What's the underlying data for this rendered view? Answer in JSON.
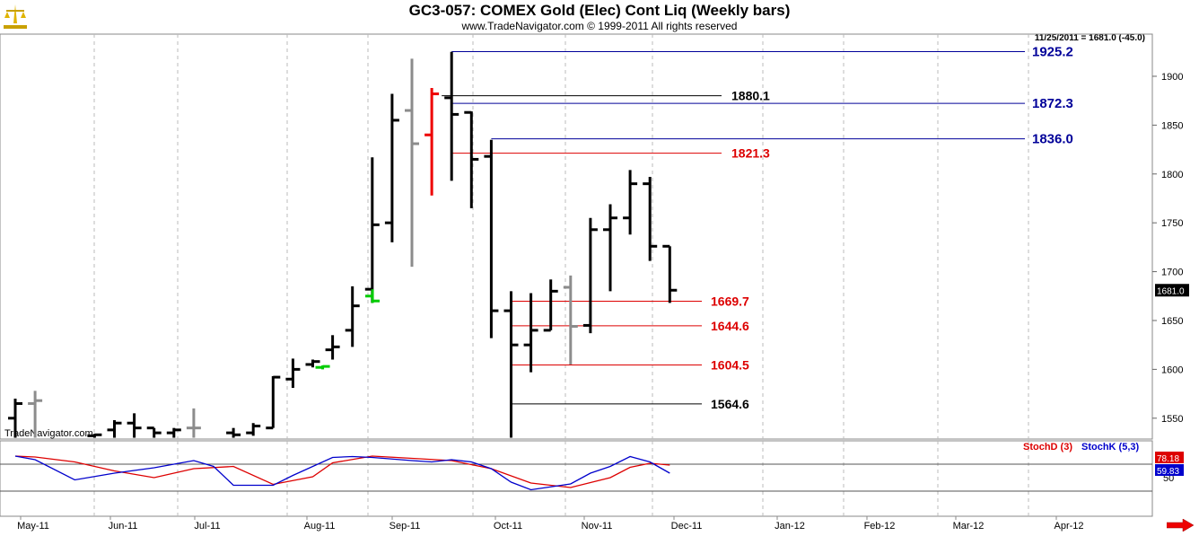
{
  "header": {
    "title": "GC3-057:  COMEX Gold (Elec) Cont Liq  (Weekly bars)",
    "subtitle": "www.TradeNavigator.com © 1999-2011 All rights reserved",
    "last_readout": "11/25/2011 = 1681.0 (-45.0)",
    "watermark": "TradeNavigator.com"
  },
  "colors": {
    "up_bar": "#000000",
    "gray_bar": "#8c8c8c",
    "red_bar": "#ee0000",
    "green_bar": "#00cc00",
    "blue_level": "#000099",
    "red_level": "#dd0000",
    "stochD": "#dd0000",
    "stochK": "#0000cc",
    "grid": "#bbbbbb"
  },
  "chart_data": [
    {
      "type": "ohlc",
      "title": "GC3-057:  COMEX Gold (Elec) Cont Liq  (Weekly bars)",
      "ylim": [
        1530,
        1945
      ],
      "yticks": [
        1550,
        1600,
        1650,
        1700,
        1750,
        1800,
        1850,
        1900
      ],
      "last_price_label": "1681.0",
      "x_ticks": [
        "May-11",
        "Jun-11",
        "Jul-11",
        "Aug-11",
        "Sep-11",
        "Oct-11",
        "Nov-11",
        "Dec-11",
        "Jan-12",
        "Feb-12",
        "Mar-12",
        "Apr-12"
      ],
      "bars": [
        {
          "week": 0,
          "o": 1550,
          "h": 1570,
          "l": 1530,
          "c": 1565,
          "color": "black"
        },
        {
          "week": 1,
          "o": 1565,
          "h": 1578,
          "l": 1530,
          "c": 1568,
          "color": "gray"
        },
        {
          "week": 4,
          "o": 1532,
          "h": 1534,
          "l": 1530,
          "c": 1533,
          "color": "black"
        },
        {
          "week": 5,
          "o": 1538,
          "h": 1548,
          "l": 1530,
          "c": 1545,
          "color": "black"
        },
        {
          "week": 6,
          "o": 1545,
          "h": 1555,
          "l": 1530,
          "c": 1540,
          "color": "black"
        },
        {
          "week": 7,
          "o": 1540,
          "h": 1540,
          "l": 1530,
          "c": 1535,
          "color": "black"
        },
        {
          "week": 8,
          "o": 1535,
          "h": 1540,
          "l": 1530,
          "c": 1538,
          "color": "black"
        },
        {
          "week": 9,
          "o": 1540,
          "h": 1560,
          "l": 1530,
          "c": 1540,
          "color": "gray"
        },
        {
          "week": 11,
          "o": 1535,
          "h": 1540,
          "l": 1530,
          "c": 1533,
          "color": "black"
        },
        {
          "week": 12,
          "o": 1535,
          "h": 1545,
          "l": 1532,
          "c": 1542,
          "color": "black"
        },
        {
          "week": 13,
          "o": 1540,
          "h": 1593,
          "l": 1540,
          "c": 1592,
          "color": "black"
        },
        {
          "week": 14,
          "o": 1590,
          "h": 1611,
          "l": 1581,
          "c": 1600,
          "color": "black"
        },
        {
          "week": 15,
          "o": 1605,
          "h": 1610,
          "l": 1602,
          "c": 1608,
          "color": "black"
        },
        {
          "week": 15.5,
          "o": 1602,
          "h": 1604,
          "l": 1600,
          "c": 1603,
          "color": "green"
        },
        {
          "week": 16,
          "o": 1620,
          "h": 1635,
          "l": 1610,
          "c": 1623,
          "color": "black"
        },
        {
          "week": 17,
          "o": 1640,
          "h": 1685,
          "l": 1623,
          "c": 1665,
          "color": "black"
        },
        {
          "week": 18,
          "o": 1682,
          "h": 1817,
          "l": 1668,
          "c": 1748,
          "color": "black"
        },
        {
          "week": 18.01,
          "o": 1675,
          "h": 1682,
          "l": 1668,
          "c": 1670,
          "color": "green"
        },
        {
          "week": 19,
          "o": 1750,
          "h": 1882,
          "l": 1730,
          "c": 1855,
          "color": "black"
        },
        {
          "week": 20,
          "o": 1865,
          "h": 1918,
          "l": 1705,
          "c": 1831,
          "color": "gray"
        },
        {
          "week": 21,
          "o": 1840,
          "h": 1888,
          "l": 1778,
          "c": 1882,
          "color": "red"
        },
        {
          "week": 22,
          "o": 1878,
          "h": 1925,
          "l": 1793,
          "c": 1861,
          "color": "black"
        },
        {
          "week": 23,
          "o": 1863,
          "h": 1864,
          "l": 1765,
          "c": 1815,
          "color": "black"
        },
        {
          "week": 24,
          "o": 1818,
          "h": 1835,
          "l": 1632,
          "c": 1660,
          "color": "black"
        },
        {
          "week": 25,
          "o": 1660,
          "h": 1680,
          "l": 1530,
          "c": 1625,
          "color": "black"
        },
        {
          "week": 26,
          "o": 1625,
          "h": 1678,
          "l": 1597,
          "c": 1640,
          "color": "black"
        },
        {
          "week": 27,
          "o": 1640,
          "h": 1692,
          "l": 1640,
          "c": 1680,
          "color": "black"
        },
        {
          "week": 28,
          "o": 1684,
          "h": 1696,
          "l": 1605,
          "c": 1644,
          "color": "gray"
        },
        {
          "week": 29,
          "o": 1645,
          "h": 1755,
          "l": 1637,
          "c": 1743,
          "color": "black"
        },
        {
          "week": 30,
          "o": 1743,
          "h": 1769,
          "l": 1680,
          "c": 1755,
          "color": "black"
        },
        {
          "week": 31,
          "o": 1755,
          "h": 1804,
          "l": 1738,
          "c": 1790,
          "color": "black"
        },
        {
          "week": 32,
          "o": 1790,
          "h": 1797,
          "l": 1711,
          "c": 1726,
          "color": "black"
        },
        {
          "week": 33,
          "o": 1726,
          "h": 1726,
          "l": 1668,
          "c": 1681,
          "color": "black"
        }
      ],
      "levels": [
        {
          "price": 1925.2,
          "label": "1925.2",
          "color": "blue",
          "from_week": 22
        },
        {
          "price": 1880.1,
          "label": "1880.1",
          "color": "black",
          "from_week": 21.5
        },
        {
          "price": 1872.3,
          "label": "1872.3",
          "color": "blue",
          "from_week": 22
        },
        {
          "price": 1836.0,
          "label": "1836.0",
          "color": "blue",
          "from_week": 24
        },
        {
          "price": 1821.3,
          "label": "1821.3",
          "color": "red",
          "from_week": 22
        },
        {
          "price": 1669.7,
          "label": "1669.7",
          "color": "red",
          "from_week": 25
        },
        {
          "price": 1644.6,
          "label": "1644.6",
          "color": "red",
          "from_week": 25
        },
        {
          "price": 1604.5,
          "label": "1604.5",
          "color": "red",
          "from_week": 25
        },
        {
          "price": 1564.6,
          "label": "1564.6",
          "color": "black",
          "from_week": 25
        }
      ]
    },
    {
      "type": "line",
      "title": "",
      "ylim": [
        0,
        100
      ],
      "yticks": [
        50,
        100
      ],
      "reference_lines": [
        20,
        80
      ],
      "series": [
        {
          "name": "StochD (3)",
          "color": "red",
          "x": [
            0,
            1,
            3,
            5,
            7,
            9,
            11,
            13,
            15,
            16,
            18,
            20,
            22,
            24,
            26,
            28,
            30,
            31,
            32,
            33
          ],
          "values": [
            98,
            96,
            85,
            65,
            50,
            70,
            75,
            35,
            52,
            83,
            98,
            93,
            88,
            70,
            38,
            28,
            50,
            73,
            82,
            78
          ]
        },
        {
          "name": "StochK (5,3)",
          "color": "blue",
          "x": [
            0,
            1,
            3,
            5,
            7,
            9,
            10,
            11,
            13,
            14,
            16,
            17,
            18,
            20,
            21,
            22,
            23,
            24,
            25,
            26,
            28,
            29,
            30,
            31,
            32,
            33
          ],
          "values": [
            98,
            90,
            45,
            60,
            72,
            88,
            75,
            33,
            33,
            55,
            95,
            97,
            95,
            88,
            85,
            90,
            85,
            70,
            40,
            23,
            36,
            60,
            75,
            97,
            85,
            60
          ]
        }
      ],
      "last_values": [
        {
          "label": "78.18",
          "color": "red"
        },
        {
          "label": "59.83",
          "color": "blue"
        }
      ]
    }
  ]
}
